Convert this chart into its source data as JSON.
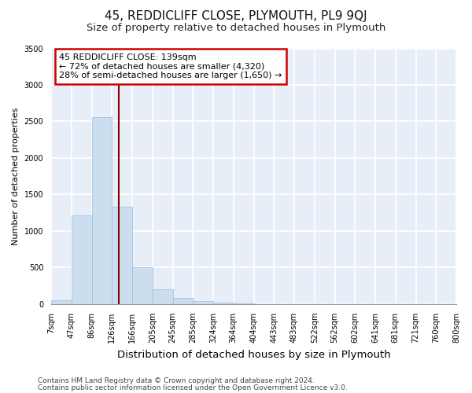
{
  "title": "45, REDDICLIFF CLOSE, PLYMOUTH, PL9 9QJ",
  "subtitle": "Size of property relative to detached houses in Plymouth",
  "xlabel": "Distribution of detached houses by size in Plymouth",
  "ylabel": "Number of detached properties",
  "bin_labels": [
    "7sqm",
    "47sqm",
    "86sqm",
    "126sqm",
    "166sqm",
    "205sqm",
    "245sqm",
    "285sqm",
    "324sqm",
    "364sqm",
    "404sqm",
    "443sqm",
    "483sqm",
    "522sqm",
    "562sqm",
    "602sqm",
    "641sqm",
    "681sqm",
    "721sqm",
    "760sqm",
    "800sqm"
  ],
  "bar_heights": [
    50,
    1220,
    2560,
    1330,
    500,
    200,
    90,
    40,
    20,
    5,
    2,
    0,
    0,
    0,
    0,
    0,
    0,
    0,
    0,
    0
  ],
  "bar_color": "#ccddf0",
  "bar_edge_color": "#9bbdd8",
  "vline_color": "#8b0000",
  "annotation_text": "45 REDDICLIFF CLOSE: 139sqm\n← 72% of detached houses are smaller (4,320)\n28% of semi-detached houses are larger (1,650) →",
  "annotation_box_color": "white",
  "annotation_box_edge": "#cc0000",
  "ylim": [
    0,
    3500
  ],
  "yticks": [
    0,
    500,
    1000,
    1500,
    2000,
    2500,
    3000,
    3500
  ],
  "footer1": "Contains HM Land Registry data © Crown copyright and database right 2024.",
  "footer2": "Contains public sector information licensed under the Open Government Licence v3.0.",
  "bg_color": "#ffffff",
  "plot_bg_color": "#e8eef8",
  "grid_color": "#ffffff",
  "title_fontsize": 11,
  "subtitle_fontsize": 9.5,
  "xlabel_fontsize": 9.5,
  "ylabel_fontsize": 8,
  "tick_fontsize": 7,
  "footer_fontsize": 6.5,
  "annotation_fontsize": 8
}
